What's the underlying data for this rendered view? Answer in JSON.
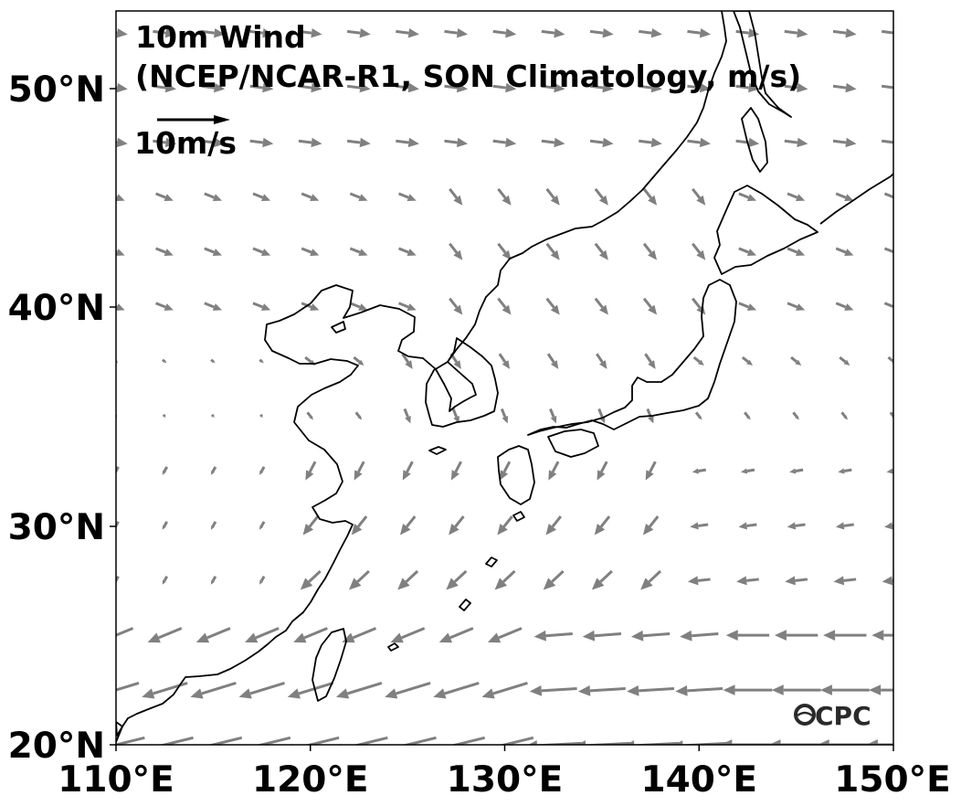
{
  "title": {
    "line1": "10m Wind",
    "line2": "(NCEP/NCAR-R1, SON Climatology, m/s)"
  },
  "reference_vector": {
    "label": "10m/s",
    "speed_ms": 10
  },
  "logo": {
    "text": "CPC"
  },
  "colors": {
    "vector": "#808080",
    "reference_vector": "#000000",
    "coastline": "#000000"
  },
  "chart_data": {
    "type": "vector_field",
    "projection": "equirectangular",
    "lon_range": [
      110,
      150
    ],
    "lat_range": [
      20,
      53.5
    ],
    "x_ticks": [
      {
        "value": 110,
        "label": "110°E"
      },
      {
        "value": 120,
        "label": "120°E"
      },
      {
        "value": 130,
        "label": "130°E"
      },
      {
        "value": 140,
        "label": "140°E"
      },
      {
        "value": 150,
        "label": "150°E"
      }
    ],
    "y_ticks": [
      {
        "value": 50,
        "label": "50°N"
      },
      {
        "value": 40,
        "label": "40°N"
      },
      {
        "value": 30,
        "label": "30°N"
      },
      {
        "value": 20,
        "label": "20°N"
      }
    ]
  }
}
